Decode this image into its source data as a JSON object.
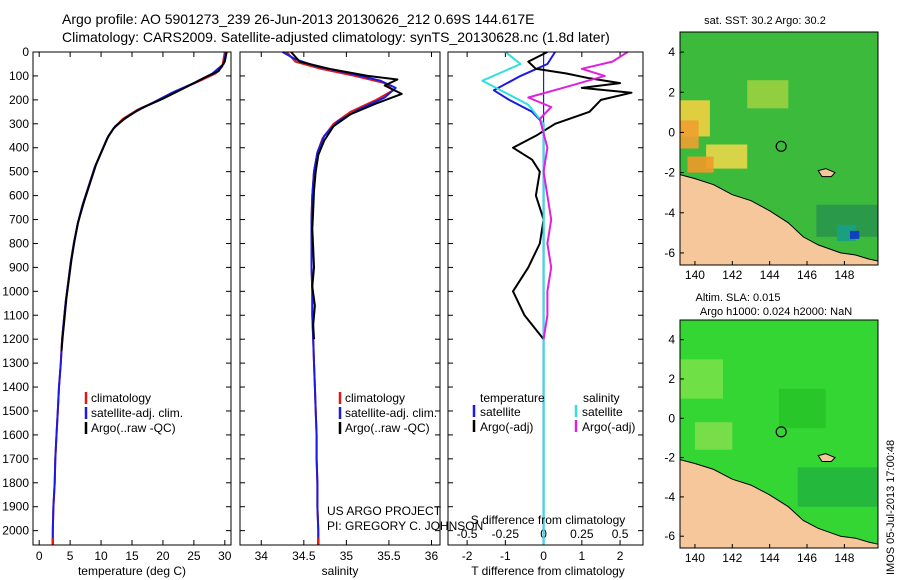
{
  "header": {
    "line1": "Argo profile: AO 5901273_239 26-Jun-2013 20130626_212 0.69S 144.617E",
    "line2": "Climatology: CARS2009. Satellite-adjusted climatology: synTS_20130628.nc (1.8d later)"
  },
  "colors": {
    "climatology": "#e01818",
    "satellite": "#1a1ae0",
    "argo": "#000000",
    "sal_satellite": "#30e0e0",
    "sal_argo": "#e020e0",
    "land": "#f5c79a",
    "sst_base": "#3cba3c",
    "sla_base": "#33d633"
  },
  "credit": {
    "line1": "US ARGO PROJECT",
    "line2": "PI: GREGORY C. JOHNSON"
  },
  "footer_stamp": "IMOS 05-Jul-2013 17:00:48",
  "chart_data": [
    {
      "id": "temperature",
      "type": "line",
      "xlabel": "temperature (deg C)",
      "xlim": [
        -1,
        31
      ],
      "xticks": [
        0,
        5,
        10,
        15,
        20,
        25,
        30
      ],
      "ylim": [
        2060,
        0
      ],
      "yticks": [
        0,
        100,
        200,
        300,
        400,
        500,
        600,
        700,
        800,
        900,
        1000,
        1100,
        1200,
        1300,
        1400,
        1500,
        1600,
        1700,
        1800,
        1900,
        2000
      ],
      "legend": [
        "climatology",
        "satellite-adj. clim.",
        "Argo(..raw -QC)"
      ],
      "series": [
        {
          "key": "climatology",
          "color": "#e01818",
          "points": [
            [
              30.0,
              0
            ],
            [
              29.6,
              60
            ],
            [
              28.5,
              90
            ],
            [
              26.0,
              120
            ],
            [
              22.5,
              160
            ],
            [
              19.5,
              200
            ],
            [
              16.0,
              240
            ],
            [
              13.5,
              280
            ],
            [
              12.0,
              320
            ],
            [
              11.0,
              360
            ],
            [
              10.0,
              420
            ],
            [
              9.0,
              480
            ],
            [
              8.0,
              560
            ],
            [
              7.0,
              640
            ],
            [
              6.2,
              720
            ],
            [
              5.6,
              800
            ],
            [
              5.1,
              880
            ],
            [
              4.7,
              960
            ],
            [
              4.3,
              1040
            ],
            [
              4.0,
              1120
            ],
            [
              3.7,
              1200
            ],
            [
              3.5,
              1300
            ],
            [
              3.2,
              1400
            ],
            [
              3.0,
              1500
            ],
            [
              2.8,
              1600
            ],
            [
              2.6,
              1700
            ],
            [
              2.5,
              1800
            ],
            [
              2.3,
              1900
            ],
            [
              2.2,
              2000
            ],
            [
              2.2,
              2060
            ]
          ]
        },
        {
          "key": "satellite",
          "color": "#1a1ae0",
          "points": [
            [
              30.2,
              0
            ],
            [
              29.8,
              50
            ],
            [
              28.0,
              90
            ],
            [
              25.0,
              130
            ],
            [
              21.5,
              170
            ],
            [
              18.5,
              210
            ],
            [
              15.5,
              250
            ],
            [
              13.5,
              285
            ],
            [
              12.0,
              320
            ],
            [
              11.0,
              360
            ],
            [
              10.0,
              420
            ],
            [
              9.0,
              480
            ],
            [
              8.0,
              560
            ],
            [
              7.0,
              640
            ],
            [
              6.2,
              720
            ],
            [
              5.6,
              800
            ],
            [
              5.1,
              880
            ],
            [
              4.7,
              960
            ],
            [
              4.3,
              1040
            ],
            [
              4.0,
              1120
            ],
            [
              3.7,
              1200
            ],
            [
              3.5,
              1300
            ],
            [
              3.2,
              1400
            ],
            [
              3.0,
              1500
            ],
            [
              2.8,
              1600
            ],
            [
              2.6,
              1700
            ],
            [
              2.5,
              1800
            ],
            [
              2.3,
              1900
            ],
            [
              2.2,
              2000
            ],
            [
              2.2,
              2060
            ]
          ]
        },
        {
          "key": "argo",
          "color": "#000000",
          "points": [
            [
              30.3,
              0
            ],
            [
              30.0,
              40
            ],
            [
              29.0,
              80
            ],
            [
              26.5,
              110
            ],
            [
              23.5,
              150
            ],
            [
              20.0,
              195
            ],
            [
              16.5,
              235
            ],
            [
              14.0,
              275
            ],
            [
              12.3,
              310
            ],
            [
              11.2,
              350
            ],
            [
              10.2,
              410
            ],
            [
              9.2,
              470
            ],
            [
              8.2,
              550
            ],
            [
              7.2,
              630
            ],
            [
              6.3,
              710
            ],
            [
              5.7,
              790
            ],
            [
              5.2,
              870
            ],
            [
              4.8,
              950
            ],
            [
              4.4,
              1030
            ],
            [
              4.1,
              1110
            ],
            [
              3.8,
              1190
            ],
            [
              3.6,
              1250
            ]
          ]
        }
      ]
    },
    {
      "id": "salinity",
      "type": "line",
      "xlabel": "salinity",
      "xlim": [
        33.75,
        36.1
      ],
      "xticks": [
        34,
        34.5,
        35,
        35.5,
        36
      ],
      "ylim": [
        2060,
        0
      ],
      "legend": [
        "climatology",
        "satellite-adj. clim.",
        "Argo(..raw -QC)"
      ],
      "series": [
        {
          "key": "climatology",
          "color": "#e01818",
          "points": [
            [
              34.3,
              0
            ],
            [
              34.4,
              40
            ],
            [
              34.7,
              70
            ],
            [
              35.1,
              100
            ],
            [
              35.45,
              130
            ],
            [
              35.55,
              160
            ],
            [
              35.35,
              200
            ],
            [
              35.05,
              250
            ],
            [
              34.85,
              300
            ],
            [
              34.72,
              360
            ],
            [
              34.66,
              420
            ],
            [
              34.62,
              500
            ],
            [
              34.6,
              600
            ],
            [
              34.59,
              700
            ],
            [
              34.59,
              800
            ],
            [
              34.59,
              900
            ],
            [
              34.6,
              1000
            ],
            [
              34.6,
              1100
            ],
            [
              34.61,
              1200
            ],
            [
              34.62,
              1300
            ],
            [
              34.63,
              1400
            ],
            [
              34.64,
              1500
            ],
            [
              34.65,
              1600
            ],
            [
              34.65,
              1700
            ],
            [
              34.66,
              1800
            ],
            [
              34.66,
              1900
            ],
            [
              34.67,
              2000
            ],
            [
              34.67,
              2060
            ]
          ]
        },
        {
          "key": "satellite",
          "color": "#1a1ae0",
          "points": [
            [
              34.25,
              0
            ],
            [
              34.4,
              30
            ],
            [
              34.65,
              60
            ],
            [
              35.05,
              90
            ],
            [
              35.4,
              120
            ],
            [
              35.58,
              150
            ],
            [
              35.45,
              190
            ],
            [
              35.15,
              240
            ],
            [
              34.9,
              290
            ],
            [
              34.74,
              350
            ],
            [
              34.66,
              420
            ],
            [
              34.62,
              500
            ],
            [
              34.6,
              600
            ],
            [
              34.59,
              700
            ],
            [
              34.59,
              800
            ],
            [
              34.59,
              900
            ],
            [
              34.6,
              1000
            ],
            [
              34.6,
              1100
            ],
            [
              34.61,
              1200
            ],
            [
              34.62,
              1300
            ],
            [
              34.63,
              1400
            ],
            [
              34.64,
              1500
            ],
            [
              34.65,
              1600
            ],
            [
              34.65,
              1700
            ],
            [
              34.66,
              1800
            ],
            [
              34.66,
              1900
            ],
            [
              34.67,
              2000
            ],
            [
              34.67,
              2060
            ]
          ]
        },
        {
          "key": "argo",
          "color": "#000000",
          "points": [
            [
              34.35,
              0
            ],
            [
              34.45,
              40
            ],
            [
              34.8,
              70
            ],
            [
              35.25,
              100
            ],
            [
              35.6,
              115
            ],
            [
              35.45,
              140
            ],
            [
              35.65,
              175
            ],
            [
              35.35,
              215
            ],
            [
              35.05,
              260
            ],
            [
              34.85,
              310
            ],
            [
              34.74,
              370
            ],
            [
              34.67,
              430
            ],
            [
              34.64,
              500
            ],
            [
              34.62,
              580
            ],
            [
              34.61,
              660
            ],
            [
              34.6,
              740
            ],
            [
              34.61,
              820
            ],
            [
              34.62,
              900
            ],
            [
              34.6,
              980
            ],
            [
              34.63,
              1060
            ],
            [
              34.61,
              1140
            ],
            [
              34.62,
              1200
            ]
          ]
        }
      ]
    },
    {
      "id": "difference",
      "type": "line",
      "xlabel": "T difference from climatology",
      "xlabel_top": "S difference from climatology",
      "xlim": [
        -2.5,
        2.6
      ],
      "xticks": [
        -2,
        -1,
        0,
        1,
        2
      ],
      "xticks_top_labels": [
        "-0.5",
        "-0.25",
        "0",
        "0.25",
        "0.5"
      ],
      "xticks_top_pos": [
        -2,
        -1,
        0,
        1,
        2
      ],
      "ylim": [
        2060,
        0
      ],
      "legend_headers": [
        "temperature",
        "salinity"
      ],
      "legend_left": [
        "satellite",
        "Argo(-adj)"
      ],
      "legend_right": [
        "satellite",
        "Argo(-adj)"
      ],
      "series": [
        {
          "key": "t_satellite",
          "color": "#1a1ae0",
          "points": [
            [
              0.3,
              0
            ],
            [
              0.1,
              50
            ],
            [
              -0.6,
              100
            ],
            [
              -1.3,
              160
            ],
            [
              -0.9,
              200
            ],
            [
              -0.3,
              250
            ],
            [
              0.0,
              300
            ],
            [
              0.0,
              400
            ],
            [
              0.0,
              500
            ],
            [
              0.0,
              2060
            ]
          ]
        },
        {
          "key": "t_argo",
          "color": "#000000",
          "points": [
            [
              0.1,
              0
            ],
            [
              -0.4,
              40
            ],
            [
              -0.2,
              70
            ],
            [
              0.6,
              90
            ],
            [
              1.2,
              110
            ],
            [
              2.0,
              130
            ],
            [
              1.0,
              150
            ],
            [
              2.3,
              170
            ],
            [
              1.5,
              200
            ],
            [
              1.2,
              250
            ],
            [
              0.3,
              300
            ],
            [
              -0.2,
              350
            ],
            [
              -0.8,
              400
            ],
            [
              -0.3,
              450
            ],
            [
              -0.1,
              500
            ],
            [
              -0.2,
              600
            ],
            [
              0.0,
              700
            ],
            [
              -0.1,
              800
            ],
            [
              -0.4,
              900
            ],
            [
              -0.8,
              1000
            ],
            [
              -0.5,
              1100
            ],
            [
              0.0,
              1200
            ]
          ]
        },
        {
          "key": "s_satellite",
          "color": "#30e0e0",
          "points": [
            [
              -1.0,
              0
            ],
            [
              -0.6,
              50
            ],
            [
              -1.6,
              120
            ],
            [
              -1.0,
              170
            ],
            [
              -0.4,
              220
            ],
            [
              0.0,
              300
            ],
            [
              0.0,
              400
            ],
            [
              0.0,
              500
            ],
            [
              0.0,
              2060
            ]
          ]
        },
        {
          "key": "s_argo",
          "color": "#e020e0",
          "points": [
            [
              2.2,
              0
            ],
            [
              1.8,
              40
            ],
            [
              1.0,
              70
            ],
            [
              1.6,
              100
            ],
            [
              0.5,
              150
            ],
            [
              -0.4,
              190
            ],
            [
              0.2,
              230
            ],
            [
              -0.1,
              280
            ],
            [
              0.1,
              400
            ],
            [
              0.0,
              500
            ],
            [
              0.1,
              600
            ],
            [
              0.2,
              700
            ],
            [
              0.1,
              800
            ],
            [
              0.2,
              900
            ],
            [
              0.1,
              1000
            ],
            [
              0.1,
              1100
            ],
            [
              0.0,
              1200
            ]
          ]
        }
      ]
    },
    {
      "id": "sst_map",
      "type": "heatmap",
      "title": "sat. SST: 30.2 Argo: 30.2",
      "xlim": [
        139.2,
        149.8
      ],
      "xticks": [
        140,
        142,
        144,
        146,
        148
      ],
      "ylim": [
        -6.6,
        5.0
      ],
      "yticks": [
        4,
        2,
        0,
        -2,
        -4,
        -6
      ],
      "marker": [
        144.617,
        -0.69
      ]
    },
    {
      "id": "sla_map",
      "type": "heatmap",
      "title": "Altim. SLA: 0.015",
      "subtitle": "Argo h1000: 0.024 h2000: NaN",
      "xlim": [
        139.2,
        149.8
      ],
      "xticks": [
        140,
        142,
        144,
        146,
        148
      ],
      "ylim": [
        -6.6,
        5.0
      ],
      "yticks": [
        4,
        2,
        0,
        -2,
        -4,
        -6
      ],
      "marker": [
        144.617,
        -0.69
      ]
    }
  ]
}
